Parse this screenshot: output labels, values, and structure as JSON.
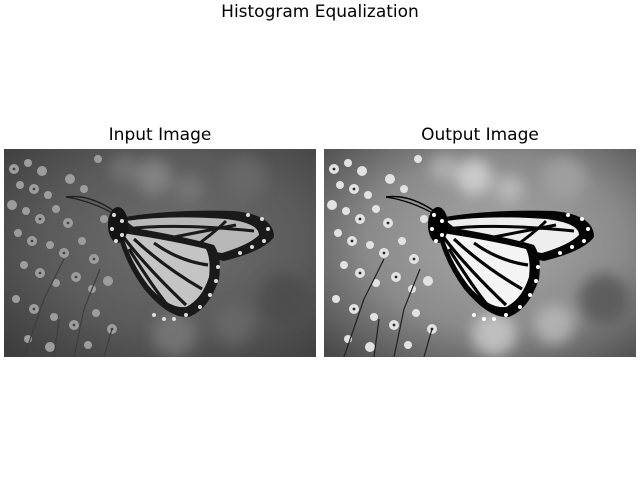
{
  "figure": {
    "title": "Histogram Equalization"
  },
  "panels": [
    {
      "title": "Input Image",
      "image": "grayscale-monarch-butterfly-on-flowers",
      "tone": "low-contrast"
    },
    {
      "title": "Output Image",
      "image": "grayscale-monarch-butterfly-on-flowers",
      "tone": "high-contrast"
    }
  ],
  "colors": {
    "background": "#ffffff",
    "text": "#000000"
  }
}
